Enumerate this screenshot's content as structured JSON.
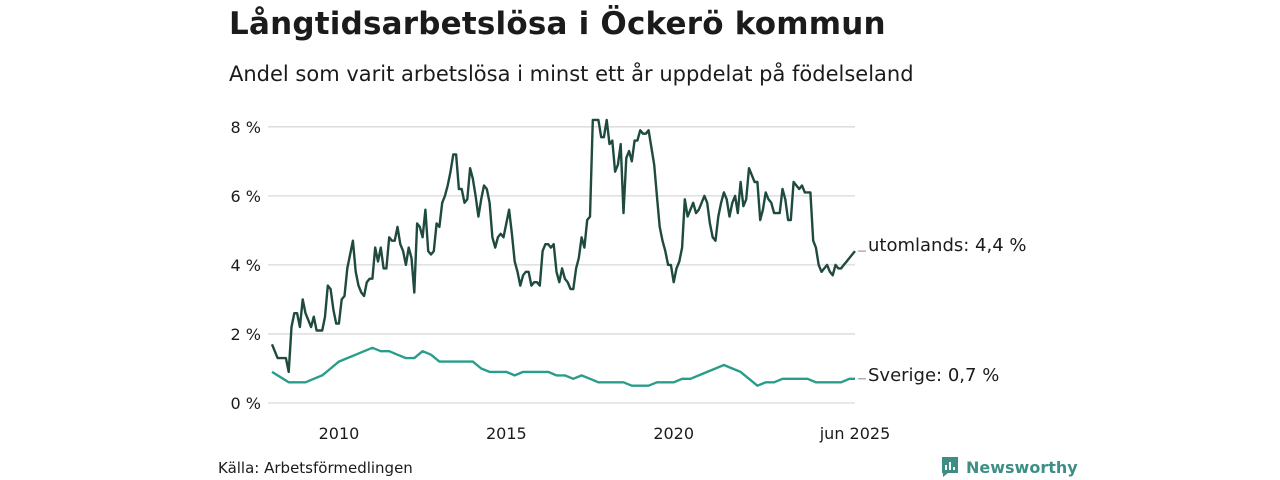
{
  "title": "Långtidsarbetslösa i Öckerö kommun",
  "subtitle": "Andel som varit arbetslösa i minst ett år uppdelat på födelseland",
  "source": "Källa: Arbetsförmedlingen",
  "brand": "Newsworthy",
  "colors": {
    "utomlands": "#1f4a3f",
    "sverige": "#2a9d8a",
    "grid": "#d9d9d9",
    "brand": "#3d8f86"
  },
  "chart_data": {
    "type": "line",
    "x_start": "2008-01",
    "x_end": "2025-06",
    "ylim": [
      0,
      8.4
    ],
    "y_ticks": [
      {
        "value": 0,
        "label": "0 %"
      },
      {
        "value": 2,
        "label": "2 %"
      },
      {
        "value": 4,
        "label": "4 %"
      },
      {
        "value": 6,
        "label": "6 %"
      },
      {
        "value": 8,
        "label": "8 %"
      }
    ],
    "x_ticks": [
      {
        "date": "2010-01",
        "label": "2010"
      },
      {
        "date": "2015-01",
        "label": "2015"
      },
      {
        "date": "2020-01",
        "label": "2020"
      },
      {
        "date": "2025-06",
        "label": "jun 2025"
      }
    ],
    "grid": true,
    "series": [
      {
        "name": "utomlands",
        "end_label": "utomlands: 4,4 %",
        "points": [
          [
            "2008-01",
            1.7
          ],
          [
            "2008-03",
            1.3
          ],
          [
            "2008-05",
            1.3
          ],
          [
            "2008-06",
            1.3
          ],
          [
            "2008-07",
            0.9
          ],
          [
            "2008-08",
            2.2
          ],
          [
            "2008-09",
            2.6
          ],
          [
            "2008-10",
            2.6
          ],
          [
            "2008-11",
            2.2
          ],
          [
            "2008-12",
            3.0
          ],
          [
            "2009-01",
            2.6
          ],
          [
            "2009-03",
            2.2
          ],
          [
            "2009-04",
            2.5
          ],
          [
            "2009-05",
            2.1
          ],
          [
            "2009-07",
            2.1
          ],
          [
            "2009-08",
            2.5
          ],
          [
            "2009-09",
            3.4
          ],
          [
            "2009-10",
            3.3
          ],
          [
            "2009-11",
            2.7
          ],
          [
            "2009-12",
            2.3
          ],
          [
            "2010-01",
            2.3
          ],
          [
            "2010-02",
            3.0
          ],
          [
            "2010-03",
            3.1
          ],
          [
            "2010-04",
            3.9
          ],
          [
            "2010-05",
            4.3
          ],
          [
            "2010-06",
            4.7
          ],
          [
            "2010-07",
            3.8
          ],
          [
            "2010-08",
            3.4
          ],
          [
            "2010-09",
            3.2
          ],
          [
            "2010-10",
            3.1
          ],
          [
            "2010-11",
            3.5
          ],
          [
            "2010-12",
            3.6
          ],
          [
            "2011-01",
            3.6
          ],
          [
            "2011-02",
            4.5
          ],
          [
            "2011-03",
            4.1
          ],
          [
            "2011-04",
            4.5
          ],
          [
            "2011-05",
            3.9
          ],
          [
            "2011-06",
            3.9
          ],
          [
            "2011-07",
            4.8
          ],
          [
            "2011-08",
            4.7
          ],
          [
            "2011-09",
            4.7
          ],
          [
            "2011-10",
            5.1
          ],
          [
            "2011-11",
            4.6
          ],
          [
            "2011-12",
            4.4
          ],
          [
            "2012-01",
            4.0
          ],
          [
            "2012-02",
            4.5
          ],
          [
            "2012-03",
            4.2
          ],
          [
            "2012-04",
            3.2
          ],
          [
            "2012-05",
            5.2
          ],
          [
            "2012-06",
            5.1
          ],
          [
            "2012-07",
            4.8
          ],
          [
            "2012-08",
            5.6
          ],
          [
            "2012-09",
            4.4
          ],
          [
            "2012-10",
            4.3
          ],
          [
            "2012-11",
            4.4
          ],
          [
            "2012-12",
            5.2
          ],
          [
            "2013-01",
            5.1
          ],
          [
            "2013-02",
            5.8
          ],
          [
            "2013-03",
            6.0
          ],
          [
            "2013-04",
            6.3
          ],
          [
            "2013-05",
            6.7
          ],
          [
            "2013-06",
            7.2
          ],
          [
            "2013-07",
            7.2
          ],
          [
            "2013-08",
            6.2
          ],
          [
            "2013-09",
            6.2
          ],
          [
            "2013-10",
            5.8
          ],
          [
            "2013-11",
            5.9
          ],
          [
            "2013-12",
            6.8
          ],
          [
            "2014-01",
            6.5
          ],
          [
            "2014-02",
            6.0
          ],
          [
            "2014-03",
            5.4
          ],
          [
            "2014-04",
            5.9
          ],
          [
            "2014-05",
            6.3
          ],
          [
            "2014-06",
            6.2
          ],
          [
            "2014-07",
            5.8
          ],
          [
            "2014-08",
            4.8
          ],
          [
            "2014-09",
            4.5
          ],
          [
            "2014-10",
            4.8
          ],
          [
            "2014-11",
            4.9
          ],
          [
            "2014-12",
            4.8
          ],
          [
            "2015-01",
            5.2
          ],
          [
            "2015-02",
            5.6
          ],
          [
            "2015-03",
            4.9
          ],
          [
            "2015-04",
            4.1
          ],
          [
            "2015-05",
            3.8
          ],
          [
            "2015-06",
            3.4
          ],
          [
            "2015-07",
            3.7
          ],
          [
            "2015-08",
            3.8
          ],
          [
            "2015-09",
            3.8
          ],
          [
            "2015-10",
            3.4
          ],
          [
            "2015-11",
            3.5
          ],
          [
            "2015-12",
            3.5
          ],
          [
            "2016-01",
            3.4
          ],
          [
            "2016-02",
            4.4
          ],
          [
            "2016-03",
            4.6
          ],
          [
            "2016-04",
            4.6
          ],
          [
            "2016-05",
            4.5
          ],
          [
            "2016-06",
            4.6
          ],
          [
            "2016-07",
            3.8
          ],
          [
            "2016-08",
            3.5
          ],
          [
            "2016-09",
            3.9
          ],
          [
            "2016-10",
            3.6
          ],
          [
            "2016-11",
            3.5
          ],
          [
            "2016-12",
            3.3
          ],
          [
            "2017-01",
            3.3
          ],
          [
            "2017-02",
            3.9
          ],
          [
            "2017-03",
            4.2
          ],
          [
            "2017-04",
            4.8
          ],
          [
            "2017-05",
            4.5
          ],
          [
            "2017-06",
            5.3
          ],
          [
            "2017-07",
            5.4
          ],
          [
            "2017-08",
            8.2
          ],
          [
            "2017-09",
            8.2
          ],
          [
            "2017-10",
            8.2
          ],
          [
            "2017-11",
            7.7
          ],
          [
            "2017-12",
            7.7
          ],
          [
            "2018-01",
            8.2
          ],
          [
            "2018-02",
            7.5
          ],
          [
            "2018-03",
            7.6
          ],
          [
            "2018-04",
            6.7
          ],
          [
            "2018-05",
            6.9
          ],
          [
            "2018-06",
            7.5
          ],
          [
            "2018-07",
            5.5
          ],
          [
            "2018-08",
            7.1
          ],
          [
            "2018-09",
            7.3
          ],
          [
            "2018-10",
            7.0
          ],
          [
            "2018-11",
            7.6
          ],
          [
            "2018-12",
            7.6
          ],
          [
            "2019-01",
            7.9
          ],
          [
            "2019-02",
            7.8
          ],
          [
            "2019-03",
            7.8
          ],
          [
            "2019-04",
            7.9
          ],
          [
            "2019-05",
            7.4
          ],
          [
            "2019-06",
            6.9
          ],
          [
            "2019-07",
            6.0
          ],
          [
            "2019-08",
            5.1
          ],
          [
            "2019-09",
            4.7
          ],
          [
            "2019-10",
            4.4
          ],
          [
            "2019-11",
            4.0
          ],
          [
            "2019-12",
            4.0
          ],
          [
            "2020-01",
            3.5
          ],
          [
            "2020-02",
            3.9
          ],
          [
            "2020-03",
            4.1
          ],
          [
            "2020-04",
            4.5
          ],
          [
            "2020-05",
            5.9
          ],
          [
            "2020-06",
            5.4
          ],
          [
            "2020-07",
            5.6
          ],
          [
            "2020-08",
            5.8
          ],
          [
            "2020-09",
            5.5
          ],
          [
            "2020-10",
            5.6
          ],
          [
            "2020-11",
            5.8
          ],
          [
            "2020-12",
            6.0
          ],
          [
            "2021-01",
            5.8
          ],
          [
            "2021-02",
            5.2
          ],
          [
            "2021-03",
            4.8
          ],
          [
            "2021-04",
            4.7
          ],
          [
            "2021-05",
            5.4
          ],
          [
            "2021-06",
            5.8
          ],
          [
            "2021-07",
            6.1
          ],
          [
            "2021-08",
            5.9
          ],
          [
            "2021-09",
            5.4
          ],
          [
            "2021-10",
            5.8
          ],
          [
            "2021-11",
            6.0
          ],
          [
            "2021-12",
            5.5
          ],
          [
            "2022-01",
            6.4
          ],
          [
            "2022-02",
            5.7
          ],
          [
            "2022-03",
            5.9
          ],
          [
            "2022-04",
            6.8
          ],
          [
            "2022-05",
            6.6
          ],
          [
            "2022-06",
            6.4
          ],
          [
            "2022-07",
            6.4
          ],
          [
            "2022-08",
            5.3
          ],
          [
            "2022-09",
            5.6
          ],
          [
            "2022-10",
            6.1
          ],
          [
            "2022-11",
            5.9
          ],
          [
            "2022-12",
            5.8
          ],
          [
            "2023-01",
            5.5
          ],
          [
            "2023-02",
            5.5
          ],
          [
            "2023-03",
            5.5
          ],
          [
            "2023-04",
            6.2
          ],
          [
            "2023-05",
            5.9
          ],
          [
            "2023-06",
            5.3
          ],
          [
            "2023-07",
            5.3
          ],
          [
            "2023-08",
            6.4
          ],
          [
            "2023-09",
            6.3
          ],
          [
            "2023-10",
            6.2
          ],
          [
            "2023-11",
            6.3
          ],
          [
            "2023-12",
            6.1
          ],
          [
            "2024-01",
            6.1
          ],
          [
            "2024-02",
            6.1
          ],
          [
            "2024-03",
            4.7
          ],
          [
            "2024-04",
            4.5
          ],
          [
            "2024-05",
            4.0
          ],
          [
            "2024-06",
            3.8
          ],
          [
            "2024-07",
            3.9
          ],
          [
            "2024-08",
            4.0
          ],
          [
            "2024-09",
            3.8
          ],
          [
            "2024-10",
            3.7
          ],
          [
            "2024-11",
            4.0
          ],
          [
            "2024-12",
            3.9
          ],
          [
            "2025-01",
            3.9
          ],
          [
            "2025-02",
            4.0
          ],
          [
            "2025-03",
            4.1
          ],
          [
            "2025-04",
            4.2
          ],
          [
            "2025-05",
            4.3
          ],
          [
            "2025-06",
            4.4
          ]
        ]
      },
      {
        "name": "Sverige",
        "end_label": "Sverige: 0,7 %",
        "points": [
          [
            "2008-01",
            0.9
          ],
          [
            "2008-03",
            0.8
          ],
          [
            "2008-05",
            0.7
          ],
          [
            "2008-07",
            0.6
          ],
          [
            "2008-10",
            0.6
          ],
          [
            "2009-01",
            0.6
          ],
          [
            "2009-04",
            0.7
          ],
          [
            "2009-07",
            0.8
          ],
          [
            "2009-10",
            1.0
          ],
          [
            "2010-01",
            1.2
          ],
          [
            "2010-04",
            1.3
          ],
          [
            "2010-07",
            1.4
          ],
          [
            "2010-10",
            1.5
          ],
          [
            "2011-01",
            1.6
          ],
          [
            "2011-04",
            1.5
          ],
          [
            "2011-07",
            1.5
          ],
          [
            "2011-10",
            1.4
          ],
          [
            "2012-01",
            1.3
          ],
          [
            "2012-04",
            1.3
          ],
          [
            "2012-07",
            1.5
          ],
          [
            "2012-10",
            1.4
          ],
          [
            "2013-01",
            1.2
          ],
          [
            "2013-04",
            1.2
          ],
          [
            "2013-07",
            1.2
          ],
          [
            "2013-10",
            1.2
          ],
          [
            "2014-01",
            1.2
          ],
          [
            "2014-04",
            1.0
          ],
          [
            "2014-07",
            0.9
          ],
          [
            "2014-10",
            0.9
          ],
          [
            "2015-01",
            0.9
          ],
          [
            "2015-04",
            0.8
          ],
          [
            "2015-07",
            0.9
          ],
          [
            "2015-10",
            0.9
          ],
          [
            "2016-01",
            0.9
          ],
          [
            "2016-04",
            0.9
          ],
          [
            "2016-07",
            0.8
          ],
          [
            "2016-10",
            0.8
          ],
          [
            "2017-01",
            0.7
          ],
          [
            "2017-04",
            0.8
          ],
          [
            "2017-07",
            0.7
          ],
          [
            "2017-10",
            0.6
          ],
          [
            "2018-01",
            0.6
          ],
          [
            "2018-04",
            0.6
          ],
          [
            "2018-07",
            0.6
          ],
          [
            "2018-10",
            0.5
          ],
          [
            "2019-01",
            0.5
          ],
          [
            "2019-04",
            0.5
          ],
          [
            "2019-07",
            0.6
          ],
          [
            "2019-10",
            0.6
          ],
          [
            "2020-01",
            0.6
          ],
          [
            "2020-04",
            0.7
          ],
          [
            "2020-07",
            0.7
          ],
          [
            "2020-10",
            0.8
          ],
          [
            "2021-01",
            0.9
          ],
          [
            "2021-04",
            1.0
          ],
          [
            "2021-07",
            1.1
          ],
          [
            "2021-10",
            1.0
          ],
          [
            "2022-01",
            0.9
          ],
          [
            "2022-04",
            0.7
          ],
          [
            "2022-07",
            0.5
          ],
          [
            "2022-10",
            0.6
          ],
          [
            "2023-01",
            0.6
          ],
          [
            "2023-04",
            0.7
          ],
          [
            "2023-07",
            0.7
          ],
          [
            "2023-10",
            0.7
          ],
          [
            "2024-01",
            0.7
          ],
          [
            "2024-04",
            0.6
          ],
          [
            "2024-07",
            0.6
          ],
          [
            "2024-10",
            0.6
          ],
          [
            "2025-01",
            0.6
          ],
          [
            "2025-04",
            0.7
          ],
          [
            "2025-06",
            0.7
          ]
        ]
      }
    ]
  }
}
